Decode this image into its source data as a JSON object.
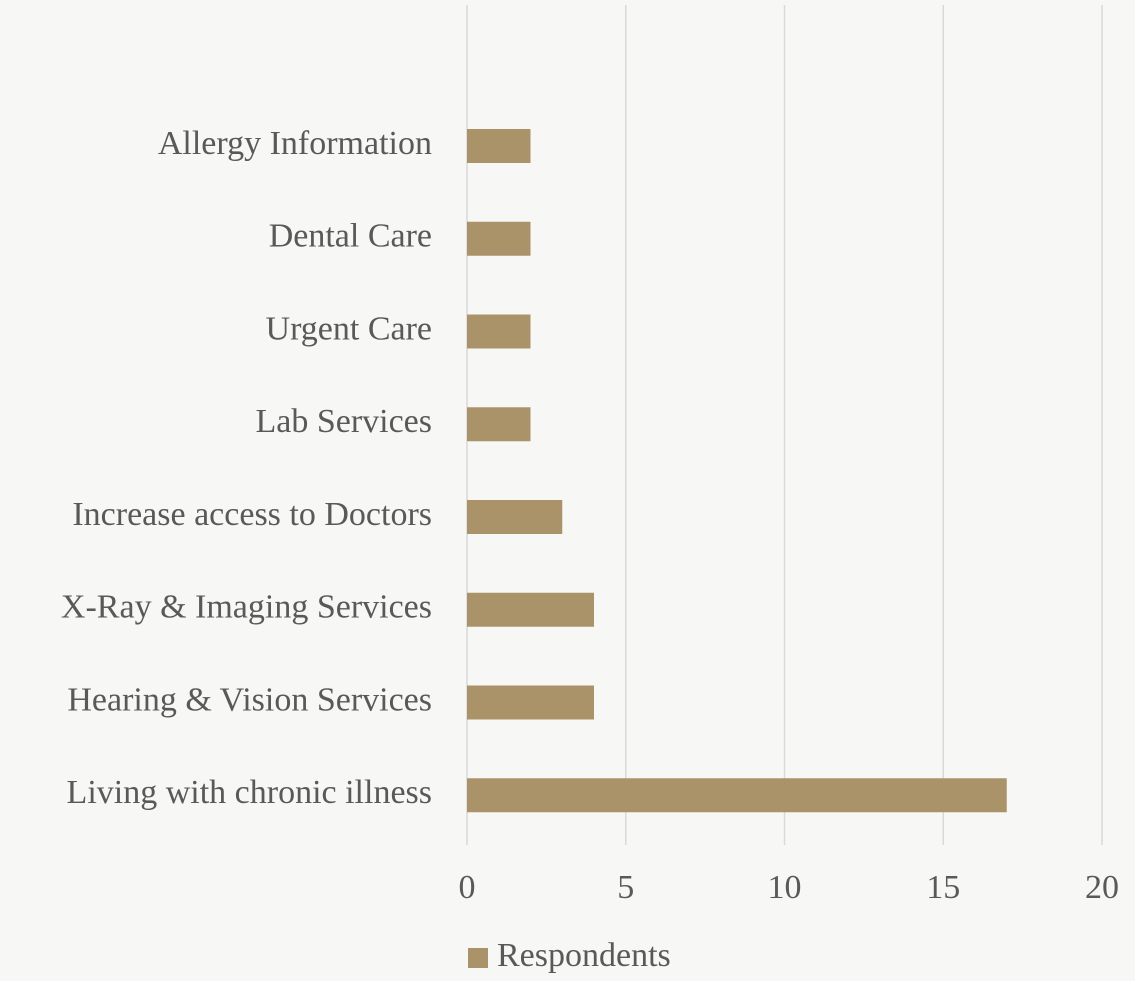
{
  "chart_data": {
    "type": "bar",
    "orientation": "horizontal",
    "categories": [
      "Allergy Information",
      "Dental Care",
      "Urgent Care",
      "Lab Services",
      "Increase access to Doctors",
      "X-Ray & Imaging Services",
      "Hearing & Vision Services",
      "Living with chronic illness"
    ],
    "series": [
      {
        "name": "Respondents",
        "color": "#ab9369",
        "values": [
          2,
          2,
          2,
          2,
          3,
          4,
          4,
          17
        ]
      }
    ],
    "xlim": [
      0,
      20
    ],
    "xticks": [
      0,
      5,
      10,
      15,
      20
    ],
    "grid": true,
    "legend": "bottom"
  }
}
